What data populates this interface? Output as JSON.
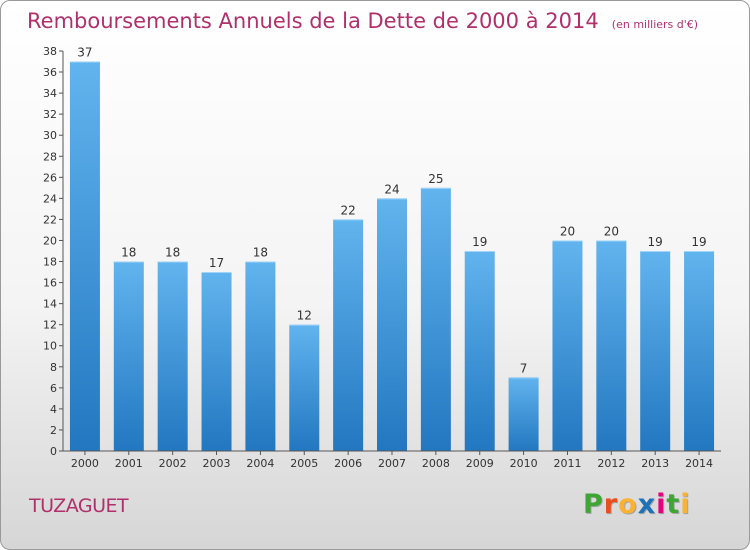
{
  "title": "Remboursements Annuels de la Dette de 2000 à 2014",
  "unit": "(en milliers d'€)",
  "commune": "TUZAGUET",
  "logo": {
    "letters": [
      "P",
      "r",
      "o",
      "x",
      "i",
      "t",
      "i"
    ],
    "colors": [
      "#3fa535",
      "#e94e1b",
      "#f9b233",
      "#1d71b8",
      "#e6007e",
      "#3fa535",
      "#f9b233"
    ]
  },
  "colors": {
    "bar_top": "#62b4ee",
    "bar_bottom": "#2277c0",
    "title": "#b0306c"
  },
  "chart_data": {
    "type": "bar",
    "categories": [
      "2000",
      "2001",
      "2002",
      "2003",
      "2004",
      "2005",
      "2006",
      "2007",
      "2008",
      "2009",
      "2010",
      "2011",
      "2012",
      "2013",
      "2014"
    ],
    "values": [
      37,
      18,
      18,
      17,
      18,
      12,
      22,
      24,
      25,
      19,
      7,
      20,
      20,
      19,
      19
    ],
    "ylim": [
      0,
      38
    ],
    "yticks": [
      0,
      2,
      4,
      6,
      8,
      10,
      12,
      14,
      16,
      18,
      20,
      22,
      24,
      26,
      28,
      30,
      32,
      34,
      36,
      38
    ],
    "grid": false,
    "legend": "none"
  }
}
